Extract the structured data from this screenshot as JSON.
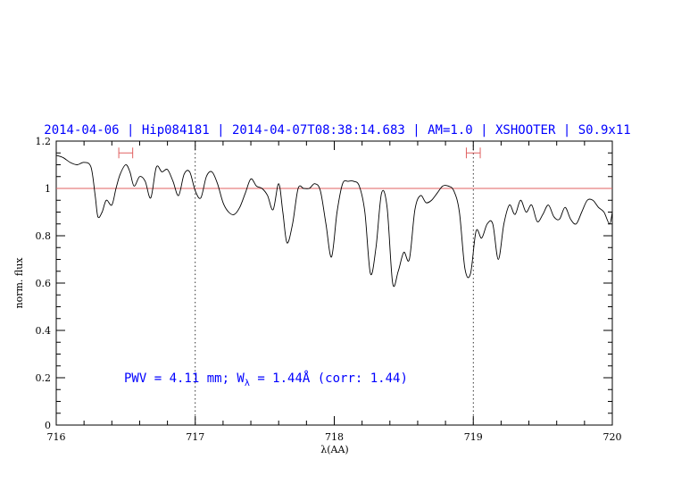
{
  "chart_data": {
    "type": "line",
    "title": "2014-04-06 | Hip084181 | 2014-04-07T08:38:14.683 | AM=1.0 | XSHOOTER | S0.9x11",
    "xlabel": "λ(AA)",
    "ylabel": "norm. flux",
    "xlim": [
      716,
      720
    ],
    "ylim": [
      0,
      1.2
    ],
    "x_ticks": [
      "716",
      "717",
      "718",
      "719",
      "720"
    ],
    "y_ticks": [
      "0",
      "0.2",
      "0.4",
      "0.6",
      "0.8",
      "1",
      "1.2"
    ],
    "grid": false,
    "reference_line": {
      "y": 1.0,
      "color": "#e06060"
    },
    "vertical_dotted_lines": [
      717,
      719
    ],
    "continuum_windows": [
      [
        716.45,
        716.55
      ],
      [
        718.95,
        719.05
      ]
    ],
    "annotation": {
      "text_main": "PWV = 4.11 mm; W",
      "subscript": "λ",
      "text_tail": " = 1.44Å (corr: 1.44)",
      "color": "#0000ff"
    },
    "colors": {
      "title": "#0000ff",
      "line": "#000000",
      "reference": "#e06060",
      "windows": "#e06060"
    },
    "series": [
      {
        "x": [
          716.0,
          716.05,
          716.1,
          716.15,
          716.2,
          716.25,
          716.28,
          716.3,
          716.33,
          716.36,
          716.4,
          716.43,
          716.46,
          716.5,
          716.53,
          716.56,
          716.6,
          716.64,
          716.68,
          716.72,
          716.76,
          716.8,
          716.84,
          716.88,
          716.92,
          716.96,
          717.0,
          717.04,
          717.08,
          717.12,
          717.16,
          717.2,
          717.24,
          717.28,
          717.32,
          717.36,
          717.4,
          717.44,
          717.48,
          717.52,
          717.56,
          717.6,
          717.63,
          717.66,
          717.7,
          717.74,
          717.78,
          717.82,
          717.86,
          717.9,
          717.94,
          717.98,
          718.02,
          718.06,
          718.1,
          718.14,
          718.18,
          718.22,
          718.26,
          718.3,
          718.34,
          718.38,
          718.42,
          718.46,
          718.5,
          718.54,
          718.58,
          718.62,
          718.66,
          718.7,
          718.74,
          718.78,
          718.82,
          718.86,
          718.9,
          718.94,
          718.98,
          719.02,
          719.06,
          719.1,
          719.14,
          719.18,
          719.22,
          719.26,
          719.3,
          719.34,
          719.38,
          719.42,
          719.46,
          719.5,
          719.54,
          719.58,
          719.62,
          719.66,
          719.7,
          719.74,
          719.78,
          719.82,
          719.86,
          719.9,
          719.94,
          719.98,
          720.0
        ],
        "y": [
          1.14,
          1.13,
          1.11,
          1.1,
          1.11,
          1.09,
          0.97,
          0.88,
          0.9,
          0.95,
          0.93,
          1.0,
          1.06,
          1.1,
          1.07,
          1.01,
          1.05,
          1.03,
          0.96,
          1.09,
          1.07,
          1.08,
          1.03,
          0.97,
          1.06,
          1.07,
          0.99,
          0.96,
          1.05,
          1.07,
          1.02,
          0.94,
          0.9,
          0.89,
          0.92,
          0.98,
          1.04,
          1.01,
          1.0,
          0.97,
          0.91,
          1.02,
          0.9,
          0.77,
          0.85,
          1.0,
          1.0,
          1.0,
          1.02,
          0.99,
          0.85,
          0.71,
          0.9,
          1.02,
          1.03,
          1.03,
          1.01,
          0.9,
          0.64,
          0.75,
          0.98,
          0.92,
          0.6,
          0.65,
          0.73,
          0.7,
          0.91,
          0.97,
          0.94,
          0.95,
          0.98,
          1.01,
          1.01,
          0.99,
          0.9,
          0.66,
          0.64,
          0.82,
          0.79,
          0.85,
          0.85,
          0.7,
          0.85,
          0.93,
          0.89,
          0.95,
          0.9,
          0.93,
          0.86,
          0.89,
          0.93,
          0.88,
          0.87,
          0.92,
          0.87,
          0.85,
          0.9,
          0.95,
          0.95,
          0.92,
          0.9,
          0.85,
          0.9
        ]
      }
    ]
  }
}
